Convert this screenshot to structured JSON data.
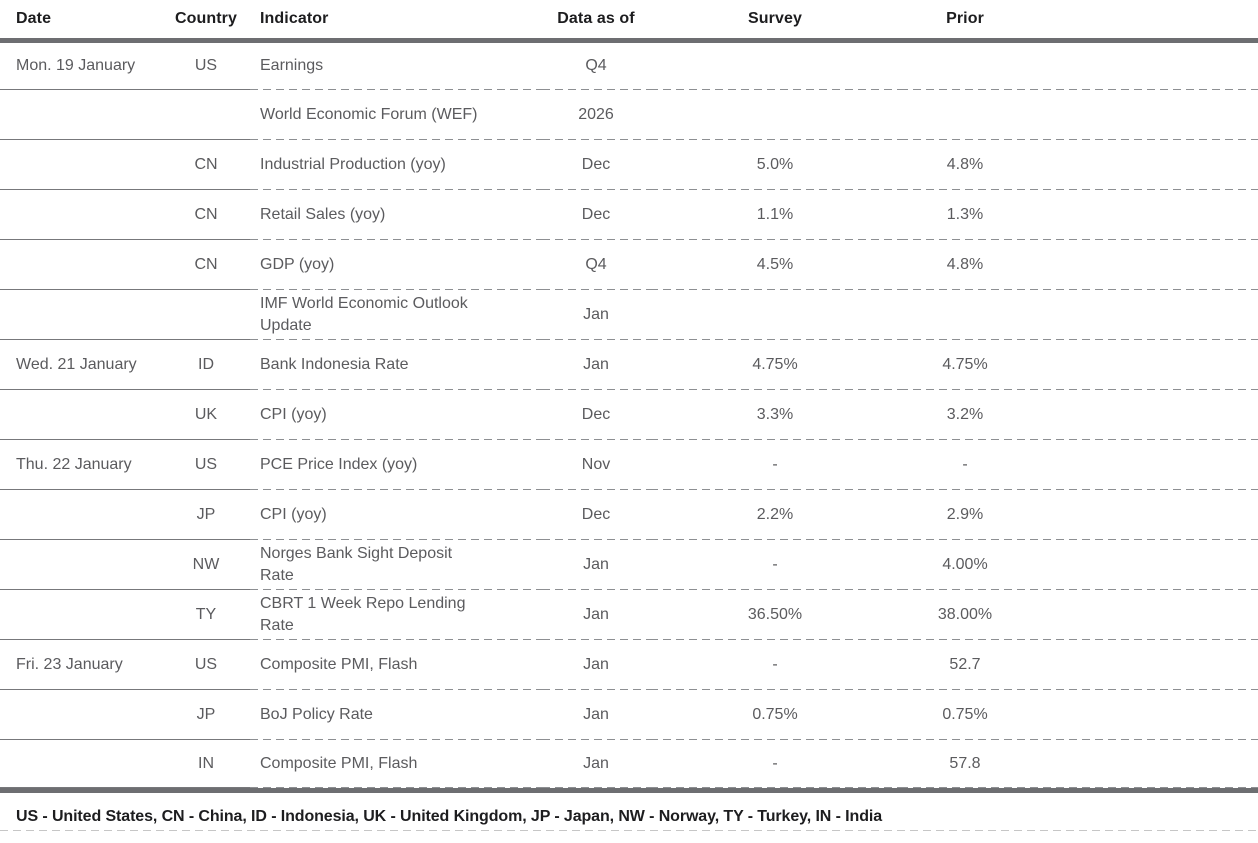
{
  "table": {
    "columns": {
      "date": "Date",
      "country": "Country",
      "indicator": "Indicator",
      "data_as_of": "Data as of",
      "survey": "Survey",
      "prior": "Prior"
    },
    "rows": [
      {
        "date": "Mon. 19 January",
        "country": "US",
        "indicator": "Earnings",
        "data_as_of": "Q4",
        "survey": "",
        "prior": ""
      },
      {
        "date": "",
        "country": "",
        "indicator": "World Economic Forum (WEF)",
        "data_as_of": "2026",
        "survey": "",
        "prior": ""
      },
      {
        "date": "",
        "country": "CN",
        "indicator": "Industrial Production (yoy)",
        "data_as_of": "Dec",
        "survey": "5.0%",
        "prior": "4.8%"
      },
      {
        "date": "",
        "country": "CN",
        "indicator": "Retail Sales (yoy)",
        "data_as_of": "Dec",
        "survey": "1.1%",
        "prior": "1.3%"
      },
      {
        "date": "",
        "country": "CN",
        "indicator": "GDP (yoy)",
        "data_as_of": "Q4",
        "survey": "4.5%",
        "prior": "4.8%"
      },
      {
        "date": "",
        "country": "",
        "indicator": "IMF World Economic Outlook\nUpdate",
        "data_as_of": "Jan",
        "survey": "",
        "prior": ""
      },
      {
        "date": "Wed. 21 January",
        "country": "ID",
        "indicator": "Bank Indonesia Rate",
        "data_as_of": "Jan",
        "survey": "4.75%",
        "prior": "4.75%"
      },
      {
        "date": "",
        "country": "UK",
        "indicator": "CPI (yoy)",
        "data_as_of": "Dec",
        "survey": "3.3%",
        "prior": "3.2%"
      },
      {
        "date": "Thu. 22 January",
        "country": "US",
        "indicator": "PCE Price Index (yoy)",
        "data_as_of": "Nov",
        "survey": "-",
        "prior": "-"
      },
      {
        "date": "",
        "country": "JP",
        "indicator": "CPI (yoy)",
        "data_as_of": "Dec",
        "survey": "2.2%",
        "prior": "2.9%"
      },
      {
        "date": "",
        "country": "NW",
        "indicator": "Norges Bank Sight Deposit\nRate",
        "data_as_of": "Jan",
        "survey": "-",
        "prior": "4.00%"
      },
      {
        "date": "",
        "country": "TY",
        "indicator": "CBRT 1 Week Repo Lending\nRate",
        "data_as_of": "Jan",
        "survey": "36.50%",
        "prior": "38.00%"
      },
      {
        "date": "Fri. 23 January",
        "country": "US",
        "indicator": "Composite PMI, Flash",
        "data_as_of": "Jan",
        "survey": "-",
        "prior": "52.7"
      },
      {
        "date": "",
        "country": "JP",
        "indicator": "BoJ Policy Rate",
        "data_as_of": "Jan",
        "survey": "0.75%",
        "prior": "0.75%"
      },
      {
        "date": "",
        "country": "IN",
        "indicator": "Composite PMI, Flash",
        "data_as_of": "Jan",
        "survey": "-",
        "prior": "57.8"
      }
    ]
  },
  "footer": {
    "legend": "US - United States, CN - China, ID - Indonesia, UK - United Kingdom, JP - Japan, NW - Norway, TY - Turkey, IN - India"
  },
  "colors": {
    "thick_rule": "#6d6e71",
    "solid_rule": "#77787b",
    "dashed_rule": "#8d8f92",
    "header_text": "#1d1d1f",
    "body_text": "#5b5b5e",
    "background": "#ffffff"
  }
}
